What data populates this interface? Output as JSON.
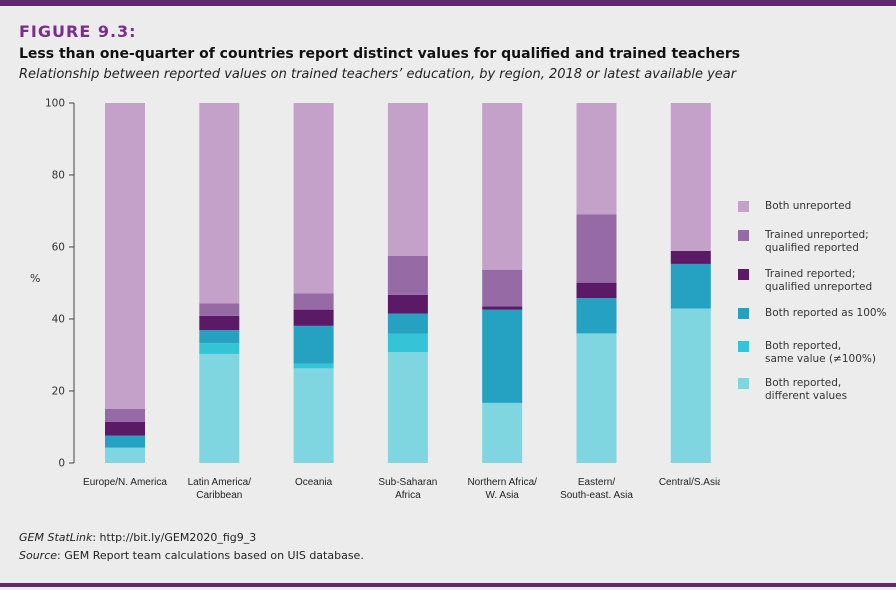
{
  "figure_label": "FIGURE 9.3:",
  "title": "Less than one-quarter of countries report distinct values for qualified and trained teachers",
  "subtitle": "Relationship between reported values on trained teachers’ education, by region, 2018 or latest available year",
  "footer": {
    "statlink_label": "GEM StatLink",
    "statlink_value": ": http://bit.ly/GEM2020_fig9_3",
    "source_label": "Source",
    "source_value": ": GEM Report team calculations based on UIS database."
  },
  "chart_data": {
    "type": "bar",
    "stacked": true,
    "ylabel": "%",
    "ylim": [
      0,
      100
    ],
    "yticks": [
      0,
      20,
      40,
      60,
      80,
      100
    ],
    "grid": false,
    "legend_position": "right",
    "categories": [
      [
        "Europe/N. America"
      ],
      [
        "Latin America/",
        "Caribbean"
      ],
      [
        "Oceania"
      ],
      [
        "Sub-Saharan",
        "Africa"
      ],
      [
        "Northern Africa/",
        "W. Asia"
      ],
      [
        "Eastern/",
        "South-east. Asia"
      ],
      [
        "Central/S.Asia"
      ]
    ],
    "series": [
      {
        "name": [
          "Both reported,",
          "different values"
        ],
        "color": "#7fd6e0",
        "values": [
          4.3,
          30.3,
          26.3,
          30.8,
          16.7,
          36.0,
          42.9
        ]
      },
      {
        "name": [
          "Both reported,",
          "same value (≠100%)"
        ],
        "color": "#33c4d8",
        "values": [
          0,
          3.0,
          1.3,
          5.1,
          0,
          0,
          0
        ]
      },
      {
        "name": [
          "Both reported as 100%"
        ],
        "color": "#25a1c1",
        "values": [
          3.3,
          3.6,
          10.5,
          5.6,
          25.9,
          9.8,
          12.4
        ]
      },
      {
        "name": [
          "Trained reported;",
          "qualified unreported"
        ],
        "color": "#5b1a66",
        "values": [
          3.8,
          4.0,
          4.5,
          5.2,
          0.9,
          4.3,
          3.6
        ]
      },
      {
        "name": [
          "Trained unreported;",
          "qualified reported"
        ],
        "color": "#966aa4",
        "values": [
          3.6,
          3.4,
          4.5,
          10.8,
          10.2,
          19.0,
          0
        ]
      },
      {
        "name": [
          "Both unreported"
        ],
        "color": "#c3a1c8",
        "values": [
          85.0,
          55.7,
          52.9,
          42.5,
          46.3,
          30.9,
          41.1
        ]
      }
    ]
  }
}
